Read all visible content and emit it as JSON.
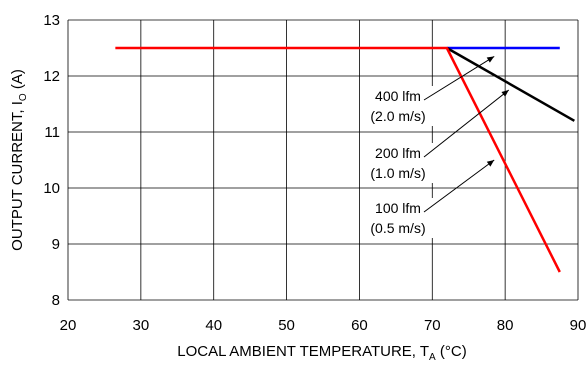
{
  "chart_data": {
    "type": "line",
    "xlabel_main": "LOCAL AMBIENT TEMPERATURE, T",
    "xlabel_sub": "A",
    "xlabel_unit": " (°C)",
    "ylabel_main": "OUTPUT CURRENT, I",
    "ylabel_sub": "O",
    "ylabel_unit": " (A)",
    "xlim": [
      20,
      90
    ],
    "ylim": [
      8,
      13
    ],
    "x_ticks": [
      20,
      30,
      40,
      50,
      60,
      70,
      80,
      90
    ],
    "y_ticks": [
      8,
      9,
      10,
      11,
      12,
      13
    ],
    "grid": true,
    "series": [
      {
        "color": "#0000ff",
        "x": [
          72,
          87.5
        ],
        "y": [
          12.5,
          12.5
        ]
      },
      {
        "color": "#000000",
        "x": [
          72,
          89.5
        ],
        "y": [
          12.5,
          11.2
        ]
      },
      {
        "color": "#ff0000",
        "x": [
          26.5,
          72,
          87.5
        ],
        "y": [
          12.5,
          12.5,
          8.5
        ]
      }
    ],
    "annotations": [
      {
        "line1": "400 lfm",
        "line2": "(2.0 m/s)",
        "point_x": 78.5,
        "point_y": 12.35
      },
      {
        "line1": "200 lfm",
        "line2": "(1.0 m/s)",
        "point_x": 80.5,
        "point_y": 11.75
      },
      {
        "line1": "100 lfm",
        "line2": "(0.5 m/s)",
        "point_x": 78.5,
        "point_y": 10.5
      }
    ]
  }
}
